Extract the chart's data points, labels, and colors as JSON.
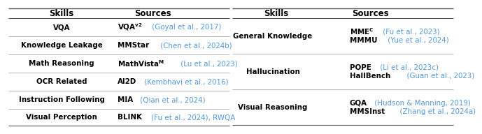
{
  "bg_color": "#ffffff",
  "line_color": "#555555",
  "cite_color": "#5599dd",
  "left_headers": [
    "Skills",
    "Sources"
  ],
  "right_headers": [
    "Skills",
    "Sources"
  ],
  "left_rows": [
    {
      "skill": "VQA",
      "src": "VQA",
      "sup": "v2",
      "cite": " (Goyal et al., 2017)"
    },
    {
      "skill": "Knowledge Leakage",
      "src": "MMStar",
      "sup": "",
      "cite": " (Chen et al., 2024b)"
    },
    {
      "skill": "Math Reasoning",
      "src": "MathVista",
      "sup": "M",
      "cite": " (Lu et al., 2023)"
    },
    {
      "skill": "OCR Related",
      "src": "AI2D",
      "sup": "",
      "cite": " (Kembhavi et al., 2016)"
    },
    {
      "skill": "Instruction Following",
      "src": "MIA",
      "sup": "",
      "cite": " (Qian et al., 2024)"
    },
    {
      "skill": "Visual Perception",
      "src": "BLINK",
      "sup": "",
      "cite": " (Fu et al., 2024), RWQA"
    }
  ],
  "right_rows": [
    {
      "skill": "General Knowledge",
      "lines": [
        {
          "src": "MME",
          "sup": "C",
          "cite": " (Fu et al., 2023)"
        },
        {
          "src": "MMMU",
          "sup": "",
          "cite": " (Yue et al., 2024)"
        }
      ]
    },
    {
      "skill": "Hallucination",
      "lines": [
        {
          "src": "POPE",
          "sup": "",
          "cite": " (Li et al., 2023c)"
        },
        {
          "src": "HallBench",
          "sup": "",
          "cite": "  (Guan et al., 2023)"
        }
      ]
    },
    {
      "skill": "Visual Reasoning",
      "lines": [
        {
          "src": "GQA",
          "sup": "",
          "cite": " (Hudson & Manning, 2019)"
        },
        {
          "src": "MMSInst",
          "sup": "",
          "cite": "  (Zhang et al., 2024a)"
        }
      ]
    }
  ]
}
